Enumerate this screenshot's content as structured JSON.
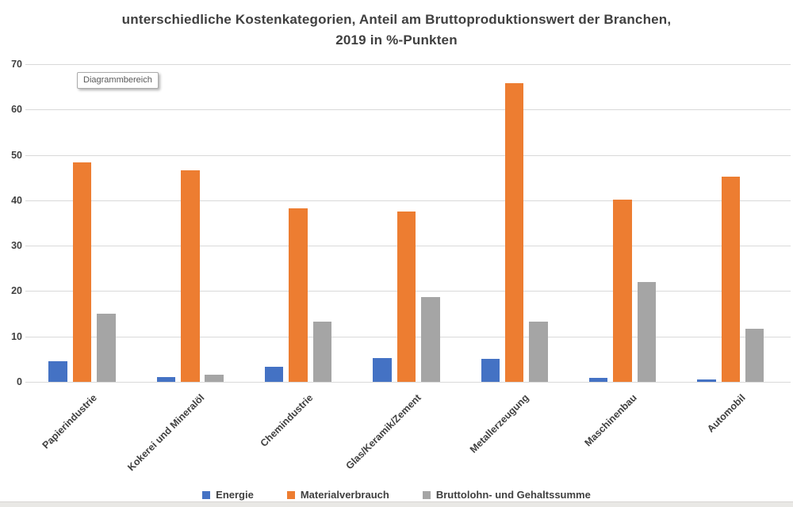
{
  "tooltip": {
    "label": "Diagrammbereich"
  },
  "chart_data": {
    "type": "bar",
    "title": "unterschiedliche Kostenkategorien, Anteil am Bruttoproduktionswert der Branchen, 2019 in %-Punkten",
    "title_lines": [
      "unterschiedliche Kostenkategorien, Anteil am Bruttoproduktionswert der Branchen,",
      "2019 in %-Punkten"
    ],
    "categories": [
      "Papierindustrie",
      "Kokerei und Mineralöl",
      "Chemindustrie",
      "Glas/Keramik/Zement",
      "Metallerzeugung",
      "Maschinenbau",
      "Automobil"
    ],
    "series": [
      {
        "name": "Energie",
        "color": "#4472C4",
        "values": [
          4.5,
          1.0,
          3.4,
          5.2,
          5.0,
          0.8,
          0.5
        ]
      },
      {
        "name": "Materialverbrauch",
        "color": "#ED7D31",
        "values": [
          48.3,
          46.6,
          38.3,
          37.6,
          65.8,
          40.2,
          45.3
        ]
      },
      {
        "name": "Bruttolohn- und Gehaltssumme",
        "color": "#A5A5A5",
        "values": [
          15.0,
          1.6,
          13.2,
          18.7,
          13.2,
          22.0,
          11.7
        ]
      }
    ],
    "ylim": [
      0,
      70
    ],
    "yticks": [
      0,
      10,
      20,
      30,
      40,
      50,
      60,
      70
    ],
    "grid": true,
    "legend_position": "bottom",
    "xlabel": "",
    "ylabel": ""
  }
}
